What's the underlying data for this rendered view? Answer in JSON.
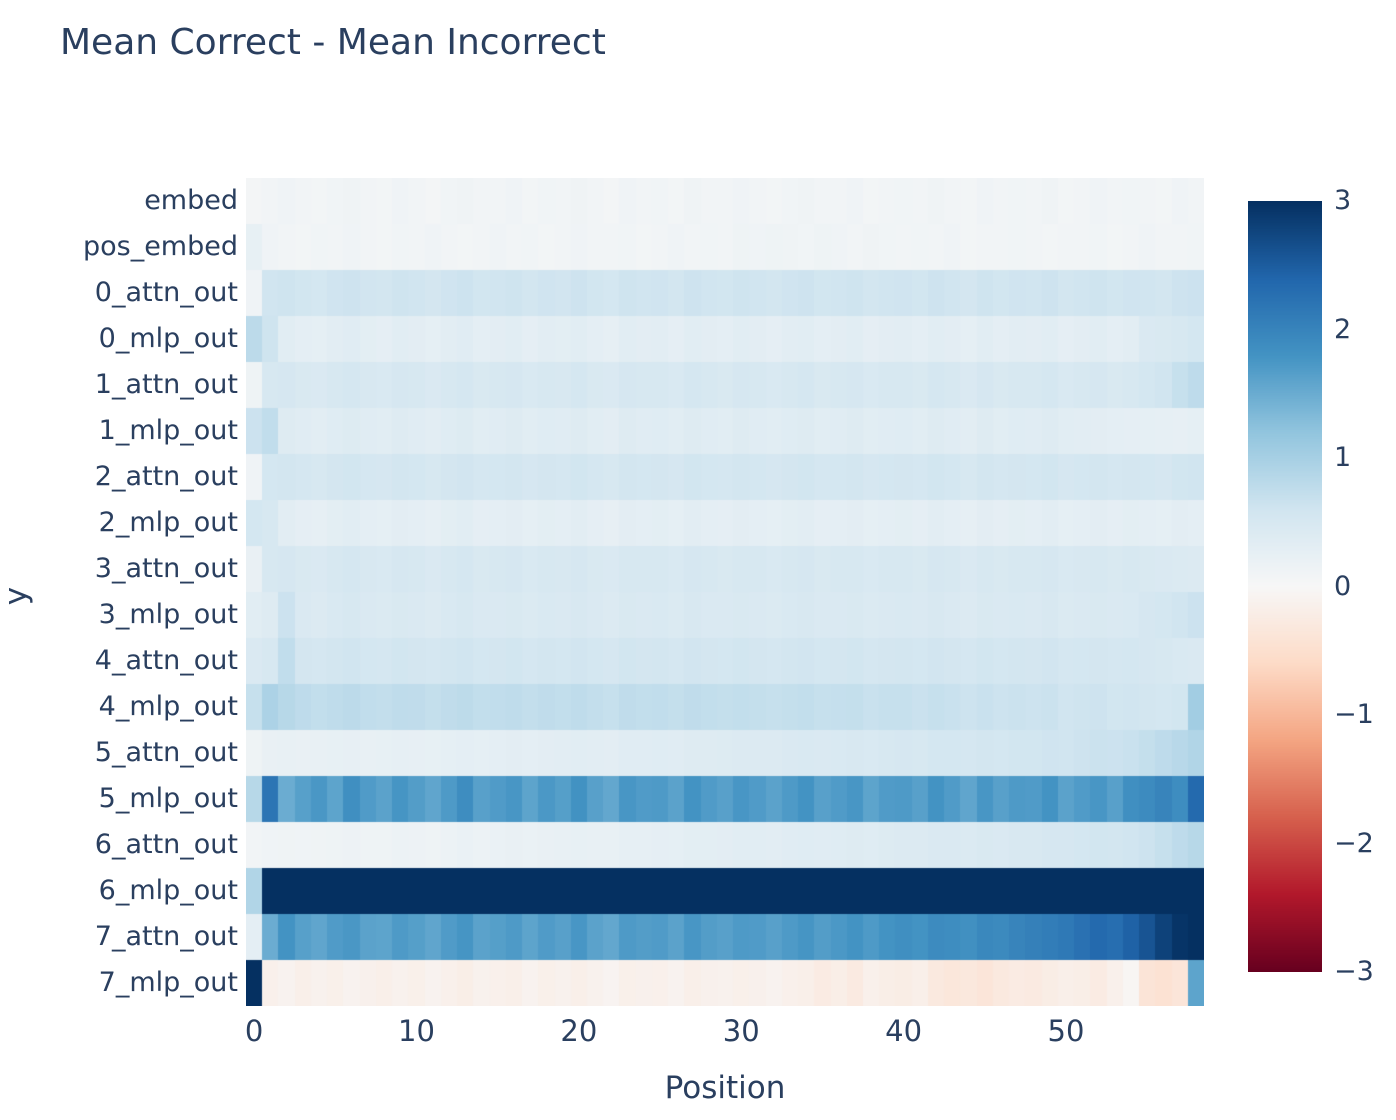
{
  "title": "Mean Correct - Mean Incorrect",
  "text_color": "#2a3f5f",
  "background": "#ffffff",
  "x_axis": {
    "title": "Position",
    "ticks": [
      0,
      10,
      20,
      30,
      40,
      50
    ]
  },
  "y_axis": {
    "title": "y"
  },
  "colorbar": {
    "tick_labels": [
      "3",
      "2",
      "1",
      "0",
      "−1",
      "−2",
      "−3"
    ],
    "tick_values": [
      3,
      2,
      1,
      0,
      -1,
      -2,
      -3
    ]
  },
  "chart_data": {
    "type": "heatmap",
    "title": "Mean Correct - Mean Incorrect",
    "xlabel": "Position",
    "ylabel": "y",
    "x_range": [
      0,
      58
    ],
    "n_cols": 59,
    "zmin": -3,
    "zmax": 3,
    "colorscale_name": "RdBu",
    "colorscale": [
      [
        0.0,
        [
          103,
          0,
          31
        ]
      ],
      [
        0.1,
        [
          178,
          24,
          43
        ]
      ],
      [
        0.2,
        [
          214,
          96,
          77
        ]
      ],
      [
        0.3,
        [
          244,
          165,
          130
        ]
      ],
      [
        0.4,
        [
          253,
          219,
          199
        ]
      ],
      [
        0.5,
        [
          247,
          247,
          247
        ]
      ],
      [
        0.6,
        [
          209,
          229,
          240
        ]
      ],
      [
        0.7,
        [
          146,
          197,
          222
        ]
      ],
      [
        0.8,
        [
          67,
          147,
          195
        ]
      ],
      [
        0.9,
        [
          33,
          102,
          172
        ]
      ],
      [
        1.0,
        [
          5,
          48,
          97
        ]
      ]
    ],
    "y_labels": [
      "embed",
      "pos_embed",
      "0_attn_out",
      "0_mlp_out",
      "1_attn_out",
      "1_mlp_out",
      "2_attn_out",
      "2_mlp_out",
      "3_attn_out",
      "3_mlp_out",
      "4_attn_out",
      "4_mlp_out",
      "5_attn_out",
      "5_mlp_out",
      "6_attn_out",
      "6_mlp_out",
      "7_attn_out",
      "7_mlp_out"
    ],
    "z": [
      [
        0.06,
        0.1,
        0.12,
        0.09,
        0.08,
        0.11,
        0.13,
        0.1,
        0.08,
        0.12,
        0.1,
        0.07,
        0.11,
        0.13,
        0.09,
        0.1,
        0.12,
        0.08,
        0.11,
        0.1,
        0.13,
        0.09,
        0.07,
        0.12,
        0.1,
        0.11,
        0.08,
        0.13,
        0.1,
        0.09,
        0.12,
        0.1,
        0.08,
        0.11,
        0.13,
        0.09,
        0.1,
        0.12,
        0.08,
        0.1,
        0.11,
        0.09,
        0.13,
        0.1,
        0.08,
        0.12,
        0.09,
        0.11,
        0.1,
        0.13,
        0.08,
        0.1,
        0.12,
        0.09,
        0.11,
        0.1,
        0.08,
        0.12,
        0.1
      ],
      [
        0.25,
        0.12,
        0.1,
        0.08,
        0.11,
        0.09,
        0.12,
        0.1,
        0.08,
        0.11,
        0.09,
        0.12,
        0.1,
        0.08,
        0.1,
        0.12,
        0.09,
        0.11,
        0.08,
        0.1,
        0.12,
        0.09,
        0.1,
        0.11,
        0.08,
        0.1,
        0.12,
        0.09,
        0.11,
        0.1,
        0.14,
        0.12,
        0.15,
        0.13,
        0.11,
        0.14,
        0.12,
        0.1,
        0.13,
        0.11,
        0.09,
        0.11,
        0.1,
        0.12,
        0.08,
        0.1,
        0.09,
        0.11,
        0.1,
        0.08,
        0.1,
        0.09,
        0.11,
        0.08,
        0.1,
        0.12,
        0.09,
        0.1,
        0.11
      ],
      [
        0.12,
        0.6,
        0.62,
        0.58,
        0.55,
        0.61,
        0.63,
        0.59,
        0.57,
        0.62,
        0.6,
        0.56,
        0.61,
        0.64,
        0.58,
        0.6,
        0.62,
        0.57,
        0.61,
        0.59,
        0.63,
        0.58,
        0.55,
        0.62,
        0.6,
        0.61,
        0.57,
        0.63,
        0.6,
        0.58,
        0.62,
        0.6,
        0.57,
        0.61,
        0.63,
        0.58,
        0.6,
        0.62,
        0.57,
        0.6,
        0.61,
        0.58,
        0.63,
        0.6,
        0.56,
        0.62,
        0.58,
        0.61,
        0.6,
        0.63,
        0.57,
        0.6,
        0.62,
        0.58,
        0.61,
        0.6,
        0.57,
        0.63,
        0.65
      ],
      [
        0.8,
        0.62,
        0.35,
        0.3,
        0.28,
        0.33,
        0.36,
        0.31,
        0.29,
        0.34,
        0.32,
        0.28,
        0.33,
        0.36,
        0.3,
        0.32,
        0.34,
        0.29,
        0.33,
        0.31,
        0.35,
        0.3,
        0.27,
        0.34,
        0.32,
        0.33,
        0.29,
        0.35,
        0.32,
        0.3,
        0.34,
        0.32,
        0.29,
        0.33,
        0.35,
        0.3,
        0.32,
        0.34,
        0.29,
        0.32,
        0.33,
        0.3,
        0.35,
        0.32,
        0.28,
        0.34,
        0.3,
        0.33,
        0.32,
        0.35,
        0.29,
        0.32,
        0.34,
        0.3,
        0.33,
        0.45,
        0.48,
        0.5,
        0.55
      ],
      [
        0.15,
        0.5,
        0.52,
        0.48,
        0.45,
        0.51,
        0.53,
        0.49,
        0.47,
        0.52,
        0.5,
        0.46,
        0.51,
        0.54,
        0.48,
        0.5,
        0.52,
        0.47,
        0.51,
        0.49,
        0.53,
        0.48,
        0.45,
        0.52,
        0.5,
        0.51,
        0.47,
        0.53,
        0.5,
        0.48,
        0.52,
        0.5,
        0.47,
        0.51,
        0.53,
        0.48,
        0.5,
        0.52,
        0.47,
        0.5,
        0.51,
        0.48,
        0.53,
        0.5,
        0.46,
        0.52,
        0.48,
        0.51,
        0.5,
        0.53,
        0.47,
        0.5,
        0.52,
        0.48,
        0.51,
        0.55,
        0.6,
        0.7,
        0.78
      ],
      [
        0.65,
        0.75,
        0.4,
        0.36,
        0.33,
        0.38,
        0.41,
        0.36,
        0.34,
        0.39,
        0.37,
        0.33,
        0.38,
        0.41,
        0.35,
        0.37,
        0.39,
        0.34,
        0.38,
        0.36,
        0.4,
        0.35,
        0.32,
        0.39,
        0.37,
        0.38,
        0.34,
        0.4,
        0.37,
        0.35,
        0.39,
        0.37,
        0.34,
        0.38,
        0.4,
        0.35,
        0.37,
        0.39,
        0.34,
        0.37,
        0.38,
        0.35,
        0.4,
        0.37,
        0.33,
        0.39,
        0.35,
        0.38,
        0.37,
        0.4,
        0.34,
        0.33,
        0.32,
        0.3,
        0.29,
        0.28,
        0.27,
        0.26,
        0.28
      ],
      [
        0.12,
        0.55,
        0.57,
        0.53,
        0.5,
        0.56,
        0.58,
        0.54,
        0.52,
        0.57,
        0.55,
        0.51,
        0.56,
        0.59,
        0.53,
        0.55,
        0.57,
        0.52,
        0.56,
        0.54,
        0.58,
        0.53,
        0.5,
        0.57,
        0.55,
        0.56,
        0.52,
        0.58,
        0.55,
        0.53,
        0.57,
        0.55,
        0.52,
        0.56,
        0.58,
        0.53,
        0.55,
        0.57,
        0.52,
        0.55,
        0.56,
        0.53,
        0.58,
        0.55,
        0.51,
        0.57,
        0.53,
        0.56,
        0.55,
        0.58,
        0.52,
        0.55,
        0.57,
        0.53,
        0.56,
        0.55,
        0.52,
        0.58,
        0.6
      ],
      [
        0.55,
        0.5,
        0.33,
        0.29,
        0.27,
        0.31,
        0.34,
        0.3,
        0.28,
        0.32,
        0.3,
        0.27,
        0.31,
        0.34,
        0.29,
        0.3,
        0.32,
        0.28,
        0.31,
        0.3,
        0.33,
        0.29,
        0.26,
        0.32,
        0.3,
        0.31,
        0.28,
        0.33,
        0.3,
        0.29,
        0.32,
        0.3,
        0.28,
        0.31,
        0.33,
        0.29,
        0.3,
        0.32,
        0.28,
        0.3,
        0.31,
        0.29,
        0.33,
        0.3,
        0.27,
        0.32,
        0.29,
        0.31,
        0.3,
        0.33,
        0.28,
        0.3,
        0.32,
        0.29,
        0.31,
        0.3,
        0.28,
        0.32,
        0.3
      ],
      [
        0.22,
        0.5,
        0.52,
        0.48,
        0.46,
        0.51,
        0.53,
        0.49,
        0.47,
        0.52,
        0.5,
        0.46,
        0.51,
        0.53,
        0.48,
        0.5,
        0.52,
        0.47,
        0.51,
        0.49,
        0.52,
        0.48,
        0.45,
        0.51,
        0.5,
        0.51,
        0.47,
        0.52,
        0.5,
        0.48,
        0.51,
        0.5,
        0.47,
        0.5,
        0.52,
        0.48,
        0.5,
        0.51,
        0.47,
        0.5,
        0.5,
        0.48,
        0.52,
        0.5,
        0.46,
        0.51,
        0.48,
        0.5,
        0.5,
        0.52,
        0.47,
        0.49,
        0.51,
        0.48,
        0.5,
        0.48,
        0.45,
        0.44,
        0.42
      ],
      [
        0.35,
        0.4,
        0.65,
        0.46,
        0.43,
        0.47,
        0.5,
        0.45,
        0.44,
        0.48,
        0.46,
        0.43,
        0.47,
        0.5,
        0.45,
        0.46,
        0.48,
        0.44,
        0.47,
        0.45,
        0.49,
        0.45,
        0.42,
        0.48,
        0.46,
        0.47,
        0.44,
        0.49,
        0.46,
        0.45,
        0.48,
        0.46,
        0.44,
        0.47,
        0.49,
        0.45,
        0.46,
        0.48,
        0.44,
        0.46,
        0.47,
        0.45,
        0.49,
        0.46,
        0.43,
        0.48,
        0.45,
        0.47,
        0.46,
        0.49,
        0.44,
        0.46,
        0.48,
        0.45,
        0.47,
        0.52,
        0.55,
        0.6,
        0.65
      ],
      [
        0.45,
        0.5,
        0.75,
        0.56,
        0.53,
        0.57,
        0.6,
        0.55,
        0.54,
        0.58,
        0.56,
        0.53,
        0.57,
        0.6,
        0.55,
        0.56,
        0.58,
        0.54,
        0.57,
        0.55,
        0.59,
        0.55,
        0.52,
        0.58,
        0.56,
        0.57,
        0.54,
        0.59,
        0.56,
        0.55,
        0.58,
        0.56,
        0.54,
        0.57,
        0.59,
        0.55,
        0.56,
        0.58,
        0.54,
        0.56,
        0.57,
        0.55,
        0.59,
        0.56,
        0.53,
        0.58,
        0.55,
        0.57,
        0.56,
        0.59,
        0.54,
        0.55,
        0.56,
        0.53,
        0.55,
        0.52,
        0.5,
        0.47,
        0.45
      ],
      [
        0.7,
        0.95,
        0.85,
        0.78,
        0.74,
        0.77,
        0.8,
        0.75,
        0.73,
        0.77,
        0.76,
        0.72,
        0.76,
        0.79,
        0.74,
        0.75,
        0.77,
        0.73,
        0.76,
        0.74,
        0.77,
        0.73,
        0.7,
        0.76,
        0.74,
        0.75,
        0.72,
        0.76,
        0.74,
        0.72,
        0.74,
        0.72,
        0.7,
        0.72,
        0.74,
        0.7,
        0.71,
        0.72,
        0.68,
        0.7,
        0.7,
        0.67,
        0.7,
        0.68,
        0.64,
        0.68,
        0.64,
        0.66,
        0.64,
        0.66,
        0.6,
        0.62,
        0.63,
        0.58,
        0.6,
        0.57,
        0.55,
        0.58,
        1.05
      ],
      [
        0.15,
        0.22,
        0.24,
        0.22,
        0.23,
        0.25,
        0.26,
        0.24,
        0.25,
        0.27,
        0.26,
        0.25,
        0.28,
        0.3,
        0.28,
        0.3,
        0.32,
        0.3,
        0.32,
        0.33,
        0.35,
        0.33,
        0.32,
        0.36,
        0.36,
        0.38,
        0.37,
        0.4,
        0.4,
        0.41,
        0.43,
        0.43,
        0.42,
        0.45,
        0.47,
        0.45,
        0.47,
        0.49,
        0.47,
        0.5,
        0.52,
        0.51,
        0.55,
        0.55,
        0.53,
        0.57,
        0.55,
        0.58,
        0.58,
        0.61,
        0.6,
        0.63,
        0.66,
        0.65,
        0.68,
        0.72,
        0.78,
        0.84,
        0.9
      ],
      [
        0.85,
        2.2,
        1.5,
        1.65,
        1.75,
        1.6,
        1.85,
        1.7,
        1.62,
        1.78,
        1.68,
        1.58,
        1.72,
        1.88,
        1.64,
        1.7,
        1.76,
        1.6,
        1.74,
        1.66,
        1.82,
        1.64,
        1.56,
        1.76,
        1.7,
        1.72,
        1.62,
        1.8,
        1.7,
        1.64,
        1.76,
        1.7,
        1.62,
        1.72,
        1.8,
        1.64,
        1.7,
        1.76,
        1.6,
        1.7,
        1.72,
        1.64,
        1.8,
        1.7,
        1.58,
        1.76,
        1.64,
        1.72,
        1.7,
        1.8,
        1.62,
        1.7,
        1.76,
        1.64,
        1.85,
        1.9,
        2.0,
        1.88,
        2.35
      ],
      [
        0.1,
        0.12,
        0.13,
        0.12,
        0.13,
        0.15,
        0.16,
        0.14,
        0.15,
        0.17,
        0.16,
        0.15,
        0.18,
        0.2,
        0.18,
        0.2,
        0.22,
        0.2,
        0.22,
        0.23,
        0.25,
        0.24,
        0.23,
        0.27,
        0.27,
        0.29,
        0.28,
        0.31,
        0.31,
        0.32,
        0.34,
        0.34,
        0.33,
        0.36,
        0.38,
        0.36,
        0.38,
        0.4,
        0.38,
        0.41,
        0.43,
        0.42,
        0.46,
        0.46,
        0.44,
        0.48,
        0.46,
        0.49,
        0.49,
        0.52,
        0.52,
        0.55,
        0.58,
        0.57,
        0.6,
        0.64,
        0.7,
        0.78,
        0.85
      ],
      [
        0.9,
        3.0,
        3.0,
        3.0,
        3.0,
        3.0,
        3.0,
        3.0,
        3.0,
        3.0,
        3.0,
        3.0,
        3.0,
        3.0,
        3.0,
        3.0,
        3.0,
        3.0,
        3.0,
        3.0,
        3.0,
        3.0,
        3.0,
        3.0,
        3.0,
        3.0,
        3.0,
        3.0,
        3.0,
        3.0,
        3.0,
        3.0,
        3.0,
        3.0,
        3.0,
        3.0,
        3.0,
        3.0,
        3.0,
        3.0,
        3.0,
        3.0,
        3.0,
        3.0,
        3.0,
        3.0,
        3.0,
        3.0,
        3.0,
        3.0,
        3.0,
        3.0,
        3.0,
        3.0,
        3.0,
        3.0,
        3.0,
        3.0,
        3.0
      ],
      [
        0.3,
        1.5,
        1.8,
        1.65,
        1.58,
        1.7,
        1.75,
        1.62,
        1.6,
        1.72,
        1.66,
        1.58,
        1.7,
        1.78,
        1.62,
        1.66,
        1.72,
        1.6,
        1.7,
        1.64,
        1.76,
        1.62,
        1.56,
        1.72,
        1.68,
        1.7,
        1.62,
        1.76,
        1.68,
        1.64,
        1.72,
        1.7,
        1.64,
        1.72,
        1.78,
        1.68,
        1.74,
        1.8,
        1.72,
        1.8,
        1.85,
        1.8,
        1.9,
        1.88,
        1.84,
        1.95,
        1.92,
        2.0,
        2.05,
        2.1,
        2.15,
        2.25,
        2.35,
        2.3,
        2.45,
        2.6,
        2.8,
        2.95,
        3.0
      ],
      [
        3.0,
        -0.15,
        -0.1,
        -0.18,
        -0.12,
        -0.16,
        -0.1,
        -0.14,
        -0.18,
        -0.12,
        -0.16,
        -0.1,
        -0.15,
        -0.2,
        -0.12,
        -0.15,
        -0.18,
        -0.1,
        -0.16,
        -0.12,
        -0.18,
        -0.12,
        -0.08,
        -0.16,
        -0.14,
        -0.15,
        -0.1,
        -0.18,
        -0.14,
        -0.12,
        -0.16,
        -0.14,
        -0.1,
        -0.15,
        -0.18,
        -0.25,
        -0.2,
        -0.28,
        -0.15,
        -0.2,
        -0.22,
        -0.18,
        -0.3,
        -0.35,
        -0.32,
        -0.38,
        -0.3,
        -0.25,
        -0.28,
        -0.22,
        -0.18,
        -0.2,
        -0.25,
        -0.15,
        -0.05,
        -0.4,
        -0.45,
        -0.38,
        1.6
      ]
    ]
  }
}
